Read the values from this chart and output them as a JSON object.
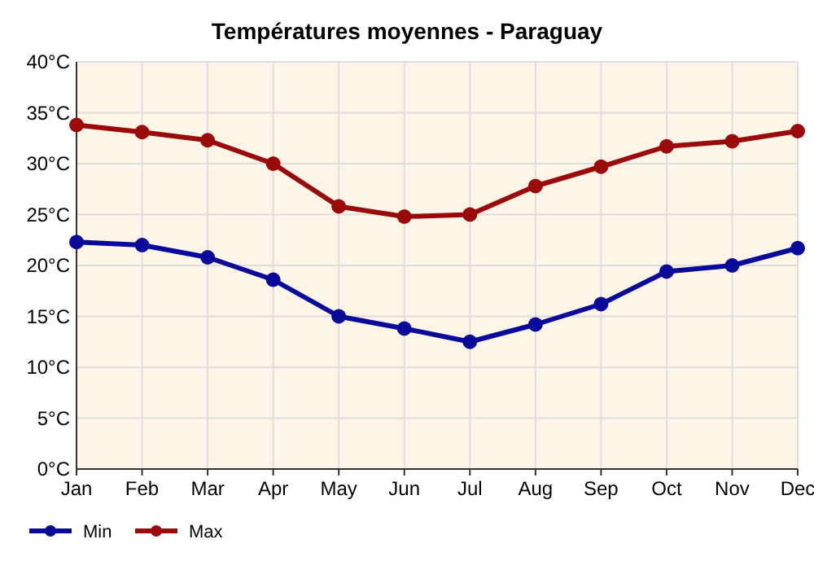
{
  "chart_data": {
    "type": "line",
    "title": "Températures moyennes - Paraguay",
    "categories": [
      "Jan",
      "Feb",
      "Mar",
      "Apr",
      "May",
      "Jun",
      "Jul",
      "Aug",
      "Sep",
      "Oct",
      "Nov",
      "Dec"
    ],
    "series": [
      {
        "name": "Min",
        "color": "#0a0a9a",
        "values": [
          22.3,
          22.0,
          20.8,
          18.6,
          15.0,
          13.8,
          12.5,
          14.2,
          16.2,
          19.4,
          20.0,
          21.7
        ]
      },
      {
        "name": "Max",
        "color": "#9a0a0a",
        "values": [
          33.8,
          33.1,
          32.3,
          30.0,
          25.8,
          24.8,
          25.0,
          27.8,
          29.7,
          31.7,
          32.2,
          33.2
        ]
      }
    ],
    "ylim": [
      0,
      40
    ],
    "yticks": [
      {
        "value": 0,
        "label": "0°C"
      },
      {
        "value": 5,
        "label": "5°C"
      },
      {
        "value": 10,
        "label": "10°C"
      },
      {
        "value": 15,
        "label": "15°C"
      },
      {
        "value": 20,
        "label": "20°C"
      },
      {
        "value": 25,
        "label": "25°C"
      },
      {
        "value": 30,
        "label": "30°C"
      },
      {
        "value": 35,
        "label": "35°C"
      },
      {
        "value": 40,
        "label": "40°C"
      }
    ],
    "grid": true,
    "legend": "bottom",
    "marker": "circle",
    "line_style": "solid"
  }
}
